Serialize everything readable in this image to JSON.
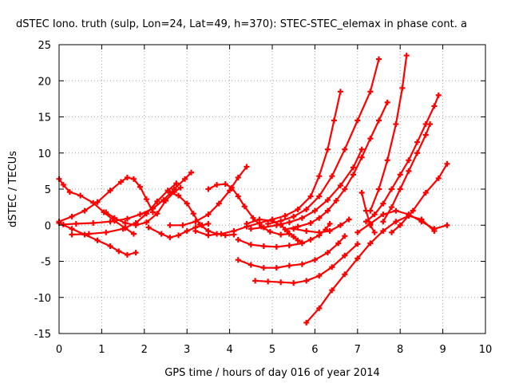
{
  "chart_data": {
    "type": "scatter",
    "title": "dSTEC Iono. truth (sulp, Lon=24, Lat=49, h=370): STEC-STEC_elemax in phase cont. a",
    "xlabel": "GPS time / hours of day 016 of year 2014",
    "ylabel": "dSTEC  / TECUs",
    "xlim": [
      0,
      10
    ],
    "ylim": [
      -15,
      25
    ],
    "xticks": [
      0,
      1,
      2,
      3,
      4,
      5,
      6,
      7,
      8,
      9,
      10
    ],
    "yticks": [
      -15,
      -10,
      -5,
      0,
      5,
      10,
      15,
      20,
      25
    ],
    "grid": true,
    "marker": "plus",
    "color": "#ff0000",
    "series": [
      {
        "x": [
          0.0,
          0.3,
          0.6,
          0.9,
          1.2,
          1.45,
          1.6,
          1.75,
          1.9,
          2.05,
          2.2
        ],
        "y": [
          0.5,
          1.2,
          2.0,
          3.2,
          4.8,
          6.0,
          6.6,
          6.4,
          5.3,
          3.6,
          1.8
        ]
      },
      {
        "x": [
          0.0,
          0.1,
          0.25,
          0.5,
          0.8,
          1.05,
          1.3,
          1.55,
          1.75
        ],
        "y": [
          6.4,
          5.6,
          4.6,
          4.1,
          3.1,
          1.8,
          0.6,
          -0.4,
          -1.2
        ]
      },
      {
        "x": [
          1.1,
          1.3,
          1.55,
          1.8,
          2.05,
          2.3,
          2.5,
          2.7,
          2.85
        ],
        "y": [
          1.8,
          1.0,
          0.3,
          0.0,
          0.4,
          1.6,
          3.4,
          4.6,
          5.2
        ]
      },
      {
        "x": [
          0.0,
          0.3,
          0.6,
          0.9,
          1.2,
          1.4,
          1.6,
          1.8
        ],
        "y": [
          0.3,
          -0.5,
          -1.3,
          -2.1,
          -2.9,
          -3.6,
          -4.1,
          -3.8
        ]
      },
      {
        "x": [
          0.3,
          0.7,
          1.1,
          1.5,
          1.8,
          2.05,
          2.3,
          2.55,
          2.75
        ],
        "y": [
          -1.3,
          -1.2,
          -1.0,
          -0.5,
          0.3,
          1.6,
          3.3,
          4.8,
          5.8
        ]
      },
      {
        "x": [
          0.1,
          0.4,
          0.8,
          1.2,
          1.6,
          1.9,
          2.2,
          2.45,
          2.7,
          2.95,
          3.1
        ],
        "y": [
          0.1,
          0.2,
          0.3,
          0.5,
          0.9,
          1.5,
          2.3,
          3.5,
          5.0,
          6.4,
          7.3
        ]
      },
      {
        "x": [
          2.6,
          2.8,
          3.0,
          3.15,
          3.3,
          3.5,
          3.7,
          3.9,
          4.1
        ],
        "y": [
          4.5,
          4.1,
          3.0,
          1.6,
          0.1,
          -0.8,
          -1.2,
          -1.4,
          -1.3
        ]
      },
      {
        "x": [
          2.1,
          2.4,
          2.6,
          2.8,
          3.0,
          3.2,
          3.35,
          3.5
        ],
        "y": [
          -0.3,
          -1.2,
          -1.7,
          -1.4,
          -0.8,
          -0.3,
          0.0,
          0.2
        ]
      },
      {
        "x": [
          2.6,
          2.9,
          3.2,
          3.5,
          3.75,
          4.0,
          4.2,
          4.4
        ],
        "y": [
          0.0,
          0.0,
          0.5,
          1.5,
          3.0,
          4.8,
          6.6,
          8.1
        ]
      },
      {
        "x": [
          3.5,
          3.7,
          3.9,
          4.05,
          4.2,
          4.35,
          4.55,
          4.75,
          4.95,
          5.2,
          5.4
        ],
        "y": [
          5.0,
          5.6,
          5.7,
          5.2,
          4.0,
          2.6,
          1.0,
          -0.2,
          -0.9,
          -1.3,
          -1.2
        ]
      },
      {
        "x": [
          3.2,
          3.5,
          3.8,
          4.1,
          4.4,
          4.7,
          5.0,
          5.3,
          5.6,
          5.9,
          6.1,
          6.3,
          6.45,
          6.6
        ],
        "y": [
          -0.8,
          -1.4,
          -1.2,
          -0.8,
          -0.2,
          0.3,
          0.8,
          1.3,
          2.2,
          4.0,
          6.8,
          10.5,
          14.5,
          18.5
        ]
      },
      {
        "x": [
          4.4,
          4.7,
          5.0,
          5.2,
          5.35,
          5.5,
          5.6,
          5.7
        ],
        "y": [
          0.2,
          0.8,
          0.6,
          0.0,
          -0.8,
          -1.6,
          -2.1,
          -2.4
        ]
      },
      {
        "x": [
          4.2,
          4.5,
          4.8,
          5.1,
          5.4,
          5.7,
          5.9,
          6.1,
          6.25,
          6.35
        ],
        "y": [
          -2.0,
          -2.7,
          -2.9,
          -3.0,
          -2.8,
          -2.5,
          -2.0,
          -1.4,
          -0.6,
          0.2
        ]
      },
      {
        "x": [
          4.5,
          4.8,
          5.1,
          5.4,
          5.7,
          6.0,
          6.3,
          6.6,
          6.9,
          7.1
        ],
        "y": [
          -0.5,
          -0.3,
          0.0,
          0.4,
          1.0,
          2.0,
          3.5,
          5.5,
          8.0,
          10.5
        ]
      },
      {
        "x": [
          4.2,
          4.5,
          4.8,
          5.1,
          5.4,
          5.7,
          6.0,
          6.3,
          6.55,
          6.7
        ],
        "y": [
          -4.8,
          -5.5,
          -5.9,
          -5.9,
          -5.6,
          -5.4,
          -4.8,
          -3.8,
          -2.5,
          -1.5
        ]
      },
      {
        "x": [
          5.5,
          5.8,
          6.1,
          6.35,
          6.6,
          6.8
        ],
        "y": [
          -0.5,
          -0.8,
          -1.0,
          -0.8,
          0.0,
          0.8
        ]
      },
      {
        "x": [
          4.6,
          4.9,
          5.2,
          5.5,
          5.8,
          6.1,
          6.4,
          6.7,
          7.0
        ],
        "y": [
          -7.7,
          -7.8,
          -7.9,
          -8.0,
          -7.7,
          -7.0,
          -5.8,
          -4.2,
          -2.6
        ]
      },
      {
        "x": [
          4.9,
          5.2,
          5.5,
          5.8,
          6.1,
          6.4,
          6.7,
          7.0,
          7.3,
          7.5
        ],
        "y": [
          0.2,
          0.6,
          1.2,
          2.2,
          4.0,
          6.8,
          10.5,
          14.5,
          18.5,
          23.0
        ]
      },
      {
        "x": [
          5.3,
          5.6,
          5.9,
          6.1,
          6.3,
          6.5,
          6.7,
          6.9,
          7.1,
          7.3,
          7.5,
          7.7
        ],
        "y": [
          -0.6,
          -0.2,
          0.3,
          1.0,
          2.0,
          3.4,
          5.0,
          7.0,
          9.4,
          12.0,
          14.5,
          17.0
        ]
      },
      {
        "x": [
          5.8,
          6.1,
          6.4,
          6.7,
          7.0,
          7.3,
          7.6,
          7.9,
          8.2,
          8.5,
          8.8
        ],
        "y": [
          -13.5,
          -11.5,
          -9.0,
          -6.8,
          -4.6,
          -2.5,
          -0.8,
          0.5,
          1.3,
          0.8,
          -0.8
        ]
      },
      {
        "x": [
          7.0,
          7.3,
          7.6,
          7.9,
          8.2,
          8.5,
          8.8,
          9.1
        ],
        "y": [
          -1.0,
          0.2,
          1.5,
          2.0,
          1.5,
          0.5,
          -0.5,
          0.0
        ]
      },
      {
        "x": [
          7.3,
          7.5,
          7.7,
          7.9,
          8.05,
          8.15
        ],
        "y": [
          2.0,
          5.0,
          9.0,
          14.0,
          19.0,
          23.5
        ]
      },
      {
        "x": [
          7.2,
          7.4,
          7.6,
          7.8,
          8.0,
          8.2,
          8.4,
          8.6,
          8.8,
          8.9
        ],
        "y": [
          0.5,
          1.5,
          3.0,
          5.0,
          7.0,
          9.0,
          11.5,
          14.0,
          16.5,
          18.0
        ]
      },
      {
        "x": [
          7.6,
          7.8,
          8.0,
          8.2,
          8.4,
          8.6,
          8.7
        ],
        "y": [
          0.5,
          2.5,
          5.0,
          7.5,
          10.0,
          12.5,
          14.0
        ]
      },
      {
        "x": [
          7.8,
          8.0,
          8.3,
          8.6,
          8.9,
          9.1
        ],
        "y": [
          -1.0,
          0.0,
          2.0,
          4.5,
          6.5,
          8.5
        ]
      },
      {
        "x": [
          7.1,
          7.2,
          7.3,
          7.4
        ],
        "y": [
          4.5,
          2.0,
          0.0,
          -1.0
        ]
      }
    ]
  }
}
